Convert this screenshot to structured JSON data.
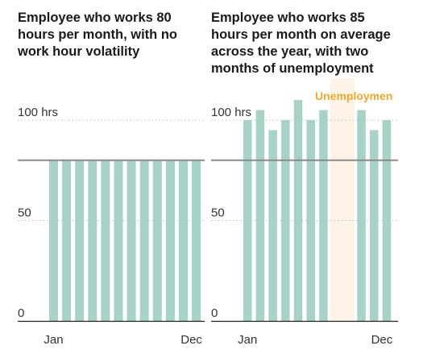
{
  "colors": {
    "bar": "#a6d2c8",
    "reference_line": "#8a8a8a",
    "gridline": "#bbbbbb",
    "axis": "#222222",
    "highlight_fill": "#fdf3e6",
    "highlight_text": "#f0a92a"
  },
  "chart_data": [
    {
      "type": "bar",
      "title": "Employee who works 80 hours per month, with no work hour volatility",
      "ylim": [
        0,
        120
      ],
      "yticks": [
        {
          "value": 0,
          "label": "0"
        },
        {
          "value": 50,
          "label": "50"
        },
        {
          "value": 100,
          "label": "100 hrs"
        }
      ],
      "xtick_labels": {
        "first": "Jan",
        "last": "Dec"
      },
      "grid": true,
      "reference_line": 80,
      "categories": [
        "1",
        "2",
        "3",
        "4",
        "5",
        "6",
        "7",
        "8",
        "9",
        "10",
        "11",
        "12"
      ],
      "values": [
        80,
        80,
        80,
        80,
        80,
        80,
        80,
        80,
        80,
        80,
        80,
        80
      ]
    },
    {
      "type": "bar",
      "title": "Employee who works 85 hours per month on average across the year, with two months of unemployment",
      "ylim": [
        0,
        120
      ],
      "yticks": [
        {
          "value": 0,
          "label": "0"
        },
        {
          "value": 50,
          "label": "50"
        },
        {
          "value": 100,
          "label": "100 hrs"
        }
      ],
      "xtick_labels": {
        "first": "Jan",
        "last": "Dec"
      },
      "grid": true,
      "reference_line": 80,
      "categories": [
        "1",
        "2",
        "3",
        "4",
        "5",
        "6",
        "7",
        "8",
        "9",
        "10",
        "11",
        "12"
      ],
      "values": [
        100,
        105,
        95,
        100,
        110,
        100,
        105,
        0,
        0,
        105,
        95,
        100
      ],
      "annotation": {
        "label": "Unemploymen",
        "start_index": 7,
        "end_index": 8
      }
    }
  ]
}
